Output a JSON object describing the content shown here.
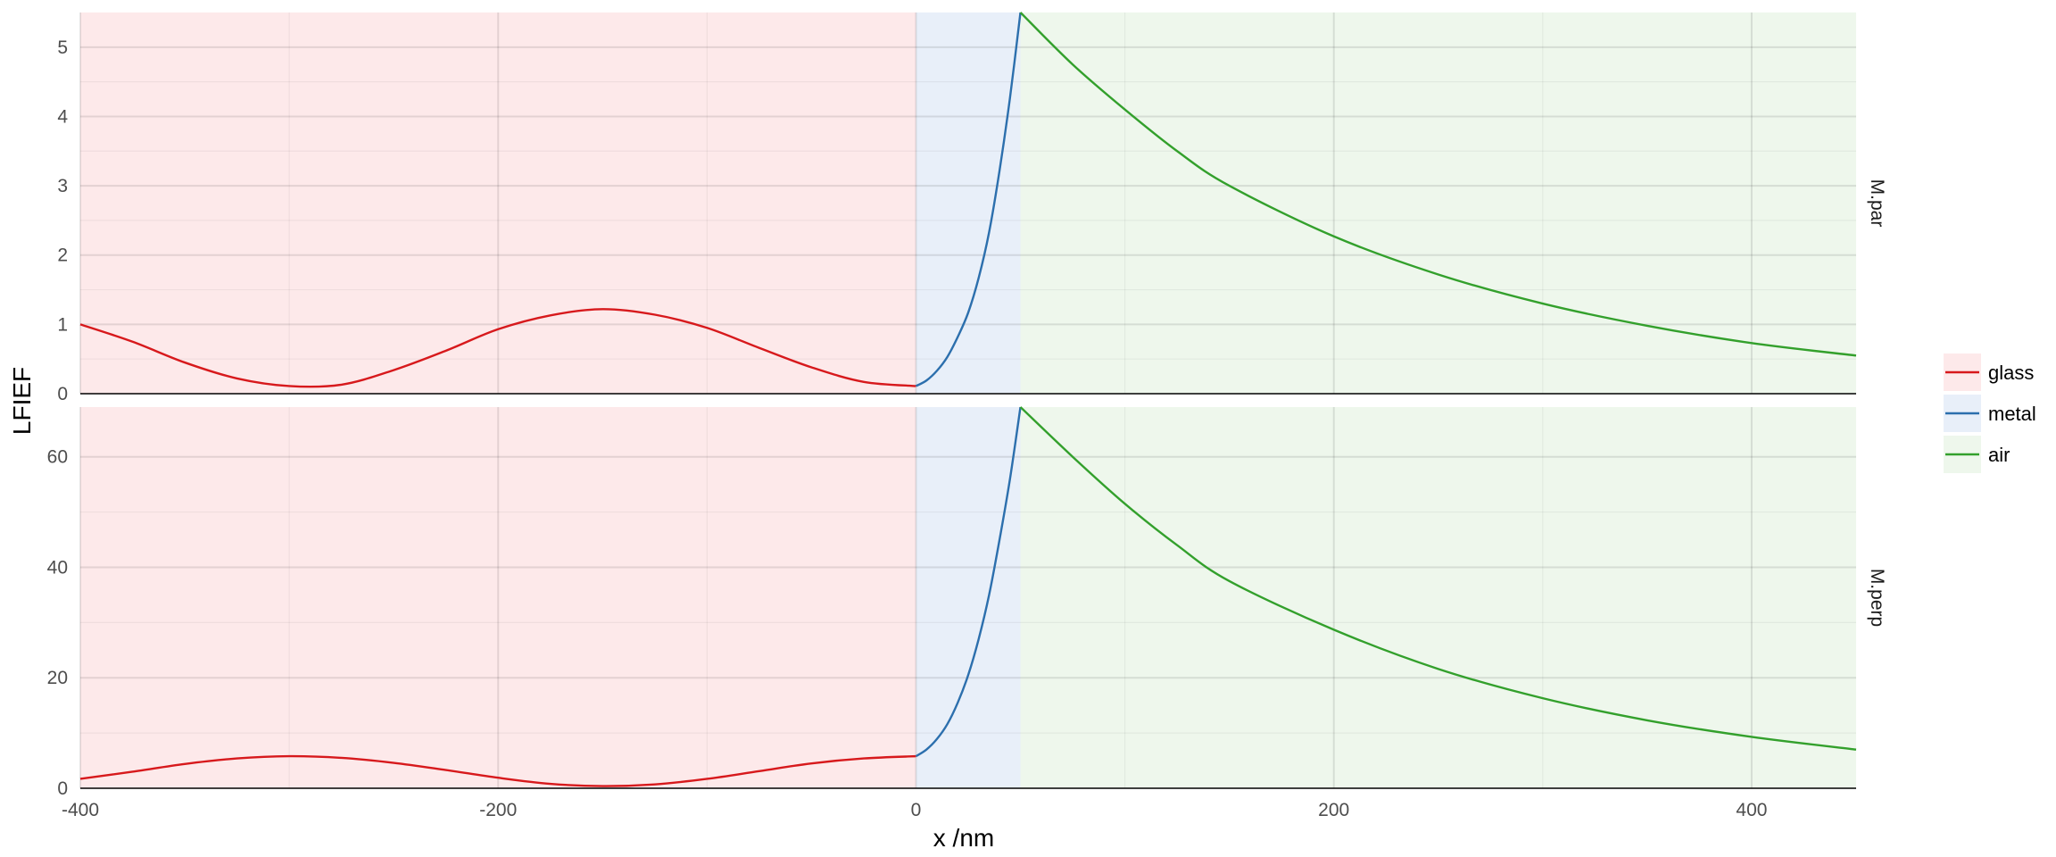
{
  "chart_data": {
    "type": "line",
    "xlabel": "x /nm",
    "ylabel": "LFIEF",
    "xlim": [
      -400,
      450
    ],
    "x_ticks": [
      -400,
      -200,
      0,
      200,
      400
    ],
    "x_tick_labels": [
      "-400",
      "-200",
      "0",
      "200",
      "400"
    ],
    "grid": true,
    "legend_position": "right",
    "regions": [
      {
        "name": "glass",
        "x_range": [
          -400,
          0
        ],
        "fill": "#fde9ea",
        "line": "#d7191c"
      },
      {
        "name": "metal",
        "x_range": [
          0,
          50
        ],
        "fill": "#e8eff9",
        "line": "#2c6fad"
      },
      {
        "name": "air",
        "x_range": [
          50,
          450
        ],
        "fill": "#eef7ec",
        "line": "#33a02c"
      }
    ],
    "panels": [
      {
        "strip": "M.par",
        "ylim": [
          0,
          5.5
        ],
        "y_ticks": [
          0,
          1,
          2,
          3,
          4,
          5
        ],
        "y_tick_labels": [
          "0",
          "1",
          "2",
          "3",
          "4",
          "5"
        ],
        "series": [
          {
            "name": "glass",
            "x": [
              -400,
              -375,
              -350,
              -325,
              -300,
              -275,
              -250,
              -225,
              -200,
              -175,
              -150,
              -125,
              -100,
              -75,
              -50,
              -25,
              0
            ],
            "values": [
              1.0,
              0.75,
              0.45,
              0.22,
              0.11,
              0.13,
              0.34,
              0.62,
              0.93,
              1.13,
              1.22,
              1.14,
              0.95,
              0.66,
              0.38,
              0.17,
              0.11
            ]
          },
          {
            "name": "metal",
            "x": [
              0,
              5,
              10,
              15,
              20,
              25,
              30,
              35,
              40,
              45,
              50
            ],
            "values": [
              0.11,
              0.19,
              0.33,
              0.53,
              0.82,
              1.17,
              1.67,
              2.33,
              3.22,
              4.27,
              5.5
            ]
          },
          {
            "name": "air",
            "x": [
              50,
              75,
              100,
              125,
              150,
              200,
              250,
              300,
              350,
              400,
              450
            ],
            "values": [
              5.5,
              4.75,
              4.1,
              3.5,
              3.0,
              2.27,
              1.72,
              1.3,
              0.98,
              0.73,
              0.55
            ]
          }
        ]
      },
      {
        "strip": "M.perp",
        "ylim": [
          0,
          69
        ],
        "y_ticks": [
          0,
          20,
          40,
          60
        ],
        "y_tick_labels": [
          "0",
          "20",
          "40",
          "60"
        ],
        "series": [
          {
            "name": "glass",
            "x": [
              -400,
              -375,
              -350,
              -325,
              -300,
              -275,
              -250,
              -225,
              -200,
              -175,
              -150,
              -125,
              -100,
              -75,
              -50,
              -25,
              0
            ],
            "values": [
              1.7,
              3.0,
              4.4,
              5.4,
              5.8,
              5.5,
              4.6,
              3.3,
              1.9,
              0.8,
              0.4,
              0.7,
              1.7,
              3.1,
              4.5,
              5.4,
              5.8
            ]
          },
          {
            "name": "metal",
            "x": [
              0,
              5,
              10,
              15,
              20,
              25,
              30,
              35,
              40,
              45,
              50
            ],
            "values": [
              5.8,
              7.0,
              8.9,
              11.6,
              15.5,
              20.5,
              27.0,
              35.0,
              45.0,
              56.0,
              69.0
            ]
          },
          {
            "name": "air",
            "x": [
              50,
              75,
              100,
              125,
              150,
              200,
              250,
              300,
              350,
              400,
              450
            ],
            "values": [
              69.0,
              60.0,
              51.5,
              44.0,
              37.5,
              28.7,
              21.6,
              16.3,
              12.3,
              9.3,
              7.0
            ]
          }
        ]
      }
    ],
    "legend": [
      {
        "name": "glass"
      },
      {
        "name": "metal"
      },
      {
        "name": "air"
      }
    ]
  }
}
